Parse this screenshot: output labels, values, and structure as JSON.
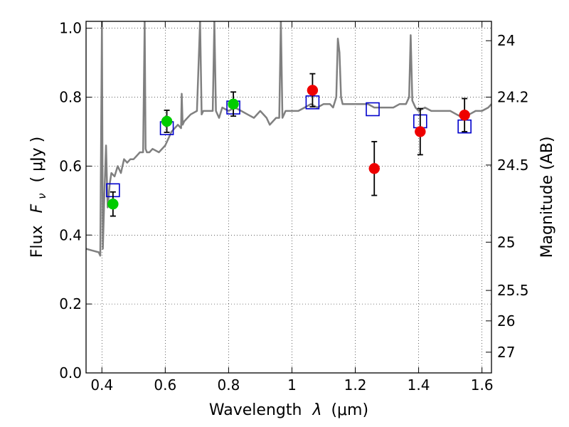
{
  "chart_data": {
    "type": "line",
    "xlabel_prefix": "Wavelength",
    "xlabel_symbol": "λ",
    "xlabel_unit": "(μm)",
    "ylabel_prefix": "Flux",
    "ylabel_symbol": "F",
    "ylabel_sub": "ν",
    "ylabel_unit": "( μJy )",
    "y2label": "Magnitude (AB)",
    "xlim": [
      0.35,
      1.63
    ],
    "ylim": [
      0.0,
      1.02
    ],
    "x_ticks": [
      0.4,
      0.6,
      0.8,
      1.0,
      1.2,
      1.4,
      1.6
    ],
    "x_tick_labels": [
      "0.4",
      "0.6",
      "0.8",
      "1",
      "1.2",
      "1.4",
      "1.6"
    ],
    "y_ticks": [
      0.0,
      0.2,
      0.4,
      0.6,
      0.8,
      1.0
    ],
    "y_tick_labels": [
      "0.0",
      "0.2",
      "0.4",
      "0.6",
      "0.8",
      "1.0"
    ],
    "y2_ticks": [
      {
        "flux": 0.9638,
        "label": "24"
      },
      {
        "flux": 0.8002,
        "label": "24.2"
      },
      {
        "flux": 0.6031,
        "label": "24.5"
      },
      {
        "flux": 0.3793,
        "label": "25"
      },
      {
        "flux": 0.2393,
        "label": "25.5"
      },
      {
        "flux": 0.151,
        "label": "26"
      },
      {
        "flux": 0.0601,
        "label": "27"
      }
    ],
    "grid": true,
    "series": [
      {
        "kind": "spectrum",
        "color": "#808080",
        "x": [
          0.35,
          0.37,
          0.39,
          0.395,
          0.4,
          0.403,
          0.408,
          0.413,
          0.418,
          0.425,
          0.43,
          0.44,
          0.45,
          0.46,
          0.47,
          0.48,
          0.49,
          0.5,
          0.51,
          0.52,
          0.53,
          0.535,
          0.538,
          0.542,
          0.55,
          0.56,
          0.58,
          0.6,
          0.62,
          0.64,
          0.65,
          0.652,
          0.655,
          0.66,
          0.68,
          0.7,
          0.71,
          0.715,
          0.72,
          0.73,
          0.74,
          0.75,
          0.755,
          0.76,
          0.77,
          0.78,
          0.8,
          0.82,
          0.84,
          0.86,
          0.88,
          0.9,
          0.92,
          0.93,
          0.94,
          0.95,
          0.96,
          0.965,
          0.97,
          0.975,
          0.98,
          1.0,
          1.02,
          1.04,
          1.06,
          1.08,
          1.1,
          1.12,
          1.13,
          1.14,
          1.145,
          1.15,
          1.155,
          1.16,
          1.17,
          1.18,
          1.19,
          1.2,
          1.22,
          1.24,
          1.26,
          1.28,
          1.3,
          1.32,
          1.34,
          1.36,
          1.37,
          1.375,
          1.38,
          1.385,
          1.39,
          1.4,
          1.42,
          1.44,
          1.46,
          1.48,
          1.5,
          1.52,
          1.54,
          1.56,
          1.58,
          1.6,
          1.62,
          1.63
        ],
        "y": [
          0.36,
          0.355,
          0.35,
          0.34,
          1.02,
          0.36,
          0.52,
          0.66,
          0.48,
          0.55,
          0.58,
          0.57,
          0.6,
          0.58,
          0.62,
          0.61,
          0.62,
          0.62,
          0.63,
          0.64,
          0.64,
          1.02,
          0.65,
          0.64,
          0.64,
          0.65,
          0.64,
          0.66,
          0.7,
          0.72,
          0.71,
          0.81,
          0.72,
          0.73,
          0.75,
          0.76,
          1.02,
          0.75,
          0.76,
          0.76,
          0.76,
          0.76,
          1.02,
          0.76,
          0.74,
          0.77,
          0.76,
          0.77,
          0.76,
          0.75,
          0.74,
          0.76,
          0.74,
          0.72,
          0.73,
          0.74,
          0.74,
          1.02,
          0.74,
          0.75,
          0.76,
          0.76,
          0.76,
          0.77,
          0.78,
          0.77,
          0.78,
          0.78,
          0.77,
          0.8,
          0.97,
          0.93,
          0.8,
          0.78,
          0.78,
          0.78,
          0.78,
          0.78,
          0.78,
          0.78,
          0.77,
          0.77,
          0.77,
          0.77,
          0.78,
          0.78,
          0.8,
          0.98,
          0.79,
          0.78,
          0.77,
          0.76,
          0.77,
          0.76,
          0.76,
          0.76,
          0.76,
          0.75,
          0.74,
          0.75,
          0.76,
          0.76,
          0.77,
          0.78
        ]
      },
      {
        "kind": "model-photometry",
        "marker": "square",
        "color": "#0000cc",
        "x": [
          0.435,
          0.605,
          0.815,
          1.065,
          1.255,
          1.405,
          1.545
        ],
        "y": [
          0.53,
          0.71,
          0.77,
          0.785,
          0.765,
          0.73,
          0.715
        ]
      },
      {
        "kind": "observed-optical",
        "marker": "circle",
        "color": "#00cc00",
        "x": [
          0.435,
          0.605,
          0.815
        ],
        "y": [
          0.49,
          0.73,
          0.78
        ],
        "yerr": [
          0.035,
          0.032,
          0.035
        ]
      },
      {
        "kind": "observed-nir",
        "marker": "circle",
        "color": "#ee0000",
        "x": [
          1.065,
          1.26,
          1.405,
          1.545
        ],
        "y": [
          0.82,
          0.593,
          0.7,
          0.748
        ],
        "yerr": [
          0.048,
          0.078,
          0.067,
          0.048
        ]
      }
    ]
  }
}
